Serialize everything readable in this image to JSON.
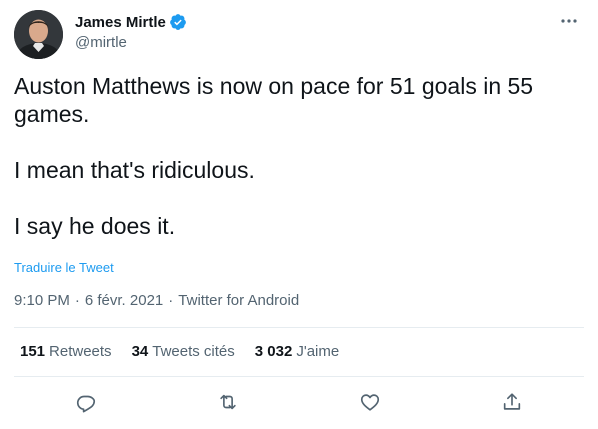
{
  "author": {
    "display_name": "James Mirtle",
    "handle": "@mirtle",
    "verified": true,
    "verified_color": "#1d9bf0"
  },
  "tweet": {
    "text": "Auston Matthews is now on pace for 51 goals in 55\ngames.\n\nI mean that's ridiculous.\n\nI say he does it.",
    "translate_label": "Traduire le Tweet",
    "time": "9:10 PM",
    "date": "6 févr. 2021",
    "source": "Twitter for Android",
    "separator": "·"
  },
  "stats": {
    "retweets_count": "151",
    "retweets_label": "Retweets",
    "quotes_count": "34",
    "quotes_label": "Tweets cités",
    "likes_count": "3 032",
    "likes_label": "J'aime"
  },
  "icons": {
    "more": "more-horizontal-icon",
    "reply": "reply-icon",
    "retweet": "retweet-icon",
    "like": "heart-icon",
    "share": "share-icon"
  },
  "colors": {
    "text": "#0f1419",
    "secondary": "#536471",
    "link": "#1d9bf0",
    "divider": "#e6ecf0"
  }
}
